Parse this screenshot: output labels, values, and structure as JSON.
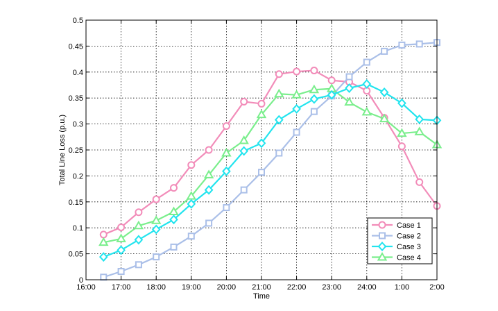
{
  "chart_data": {
    "type": "line",
    "title": "",
    "xlabel": "Time",
    "ylabel": "Total Line Loss (p.u.)",
    "x_tick_labels": [
      "16:00",
      "17:00",
      "18:00",
      "19:00",
      "20:00",
      "21:00",
      "22:00",
      "23:00",
      "24:00",
      "1:00",
      "2:00"
    ],
    "x_tick_hours": [
      16,
      17,
      18,
      19,
      20,
      21,
      22,
      23,
      24,
      25,
      26
    ],
    "xlim_hours": [
      16,
      26
    ],
    "ylim": [
      0,
      0.5
    ],
    "y_ticks": [
      0,
      0.05,
      0.1,
      0.15,
      0.2,
      0.25,
      0.3,
      0.35,
      0.4,
      0.45,
      0.5
    ],
    "y_tick_labels": [
      "0",
      "0.05",
      "0.1",
      "0.15",
      "0.2",
      "0.25",
      "0.3",
      "0.35",
      "0.4",
      "0.45",
      "0.5"
    ],
    "grid": true,
    "legend_position": "bottom-right",
    "x_hours": [
      16.5,
      17,
      17.5,
      18,
      18.5,
      19,
      19.5,
      20,
      20.5,
      21,
      21.5,
      22,
      22.5,
      23,
      23.5,
      24,
      24.5,
      25,
      25.5,
      26
    ],
    "series": [
      {
        "name": "Case 1",
        "color": "#f28cb9",
        "marker": "circle",
        "values": [
          0.087,
          0.101,
          0.13,
          0.155,
          0.177,
          0.221,
          0.25,
          0.296,
          0.343,
          0.339,
          0.396,
          0.401,
          0.403,
          0.384,
          0.381,
          0.364,
          0.312,
          0.257,
          0.188,
          0.142
        ]
      },
      {
        "name": "Case 2",
        "color": "#aabfe8",
        "marker": "square",
        "values": [
          0.005,
          0.016,
          0.029,
          0.044,
          0.063,
          0.084,
          0.109,
          0.139,
          0.173,
          0.207,
          0.244,
          0.284,
          0.324,
          0.354,
          0.391,
          0.419,
          0.44,
          0.452,
          0.454,
          0.457
        ]
      },
      {
        "name": "Case 3",
        "color": "#22e4ee",
        "marker": "diamond",
        "values": [
          0.044,
          0.057,
          0.077,
          0.097,
          0.116,
          0.146,
          0.173,
          0.209,
          0.248,
          0.263,
          0.308,
          0.329,
          0.348,
          0.356,
          0.369,
          0.377,
          0.361,
          0.34,
          0.309,
          0.307
        ]
      },
      {
        "name": "Case 4",
        "color": "#7aee8c",
        "marker": "triangle",
        "values": [
          0.072,
          0.079,
          0.104,
          0.114,
          0.131,
          0.161,
          0.202,
          0.244,
          0.268,
          0.318,
          0.358,
          0.356,
          0.366,
          0.368,
          0.342,
          0.323,
          0.31,
          0.282,
          0.285,
          0.26
        ]
      }
    ]
  }
}
